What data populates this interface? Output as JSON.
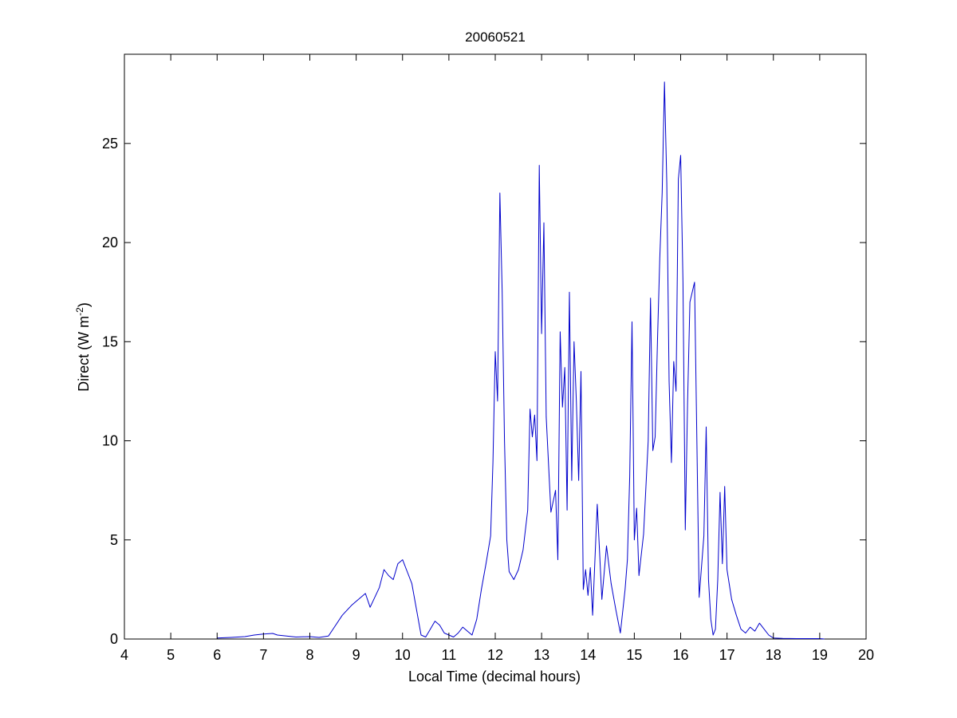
{
  "chart_data": {
    "type": "line",
    "title": "20060521",
    "xlabel": "Local Time (decimal hours)",
    "ylabel": {
      "prefix": "Direct (W m",
      "superscript": "-2",
      "suffix": ")"
    },
    "xlim": [
      4,
      20
    ],
    "ylim": [
      0,
      29.5
    ],
    "xticks": [
      4,
      5,
      6,
      7,
      8,
      9,
      10,
      11,
      12,
      13,
      14,
      15,
      16,
      17,
      18,
      19,
      20
    ],
    "yticks": [
      0,
      5,
      10,
      15,
      20,
      25
    ],
    "grid": false,
    "series": [
      {
        "color": "#0000cc",
        "x": [
          6.0,
          6.3,
          6.6,
          6.8,
          7.0,
          7.2,
          7.3,
          7.5,
          7.7,
          8.0,
          8.2,
          8.4,
          8.5,
          8.7,
          8.9,
          9.0,
          9.2,
          9.3,
          9.5,
          9.6,
          9.7,
          9.8,
          9.9,
          10.0,
          10.1,
          10.2,
          10.3,
          10.4,
          10.5,
          10.6,
          10.7,
          10.8,
          10.9,
          11.0,
          11.1,
          11.2,
          11.3,
          11.4,
          11.5,
          11.6,
          11.7,
          11.8,
          11.9,
          11.95,
          12.0,
          12.05,
          12.1,
          12.15,
          12.2,
          12.25,
          12.3,
          12.4,
          12.5,
          12.6,
          12.7,
          12.75,
          12.8,
          12.85,
          12.9,
          12.95,
          13.0,
          13.05,
          13.1,
          13.2,
          13.3,
          13.35,
          13.4,
          13.45,
          13.5,
          13.55,
          13.6,
          13.65,
          13.7,
          13.75,
          13.8,
          13.85,
          13.9,
          13.95,
          14.0,
          14.05,
          14.1,
          14.2,
          14.3,
          14.4,
          14.5,
          14.6,
          14.7,
          14.8,
          14.85,
          14.9,
          14.95,
          15.0,
          15.05,
          15.1,
          15.2,
          15.3,
          15.35,
          15.4,
          15.45,
          15.5,
          15.55,
          15.6,
          15.65,
          15.7,
          15.75,
          15.8,
          15.85,
          15.9,
          15.95,
          16.0,
          16.05,
          16.1,
          16.15,
          16.2,
          16.3,
          16.4,
          16.5,
          16.55,
          16.6,
          16.65,
          16.7,
          16.75,
          16.8,
          16.85,
          16.9,
          16.95,
          17.0,
          17.1,
          17.2,
          17.3,
          17.4,
          17.5,
          17.6,
          17.7,
          17.8,
          17.9,
          18.0,
          18.2,
          18.5,
          18.8,
          19.0,
          19.1
        ],
        "y": [
          0.05,
          0.08,
          0.12,
          0.2,
          0.25,
          0.28,
          0.2,
          0.15,
          0.1,
          0.12,
          0.08,
          0.15,
          0.5,
          1.2,
          1.7,
          1.9,
          2.3,
          1.6,
          2.6,
          3.5,
          3.2,
          3.0,
          3.8,
          4.0,
          3.4,
          2.8,
          1.5,
          0.2,
          0.1,
          0.5,
          0.9,
          0.7,
          0.3,
          0.2,
          0.1,
          0.3,
          0.6,
          0.4,
          0.2,
          1.0,
          2.5,
          3.8,
          5.2,
          8.9,
          14.5,
          12.0,
          22.5,
          17.5,
          10.0,
          5.0,
          3.4,
          3.0,
          3.5,
          4.5,
          6.5,
          11.6,
          10.2,
          11.3,
          9.0,
          23.9,
          15.4,
          21.0,
          11.2,
          6.4,
          7.5,
          4.0,
          15.5,
          11.7,
          13.7,
          6.5,
          17.5,
          8.0,
          15.0,
          12.0,
          8.0,
          13.5,
          2.5,
          3.5,
          2.2,
          3.6,
          1.2,
          6.8,
          2.0,
          4.7,
          2.8,
          1.5,
          0.3,
          2.5,
          4.0,
          8.2,
          16.0,
          5.0,
          6.6,
          3.2,
          5.3,
          10.0,
          17.2,
          9.5,
          10.2,
          15.0,
          19.2,
          22.5,
          28.1,
          23.0,
          13.0,
          8.9,
          14.0,
          12.5,
          23.2,
          24.4,
          18.0,
          5.5,
          12.0,
          17.0,
          18.0,
          2.1,
          5.2,
          10.7,
          3.0,
          1.0,
          0.2,
          0.5,
          3.0,
          7.4,
          3.8,
          7.7,
          3.5,
          2.0,
          1.2,
          0.5,
          0.3,
          0.6,
          0.4,
          0.8,
          0.5,
          0.2,
          0.05,
          0.03,
          0.02,
          0.02,
          0.02,
          0.0
        ]
      }
    ]
  }
}
